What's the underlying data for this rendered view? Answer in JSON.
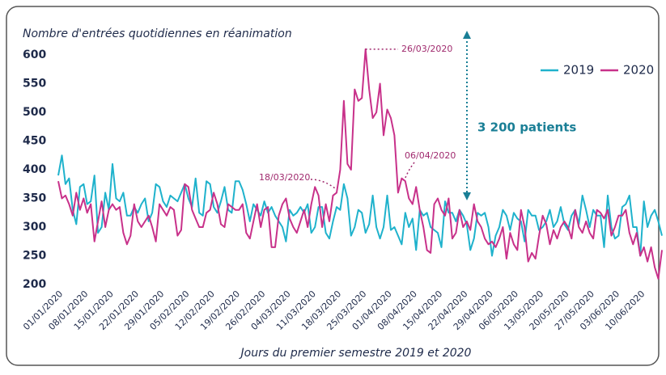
{
  "chart_data": {
    "type": "line",
    "title": "Nombre d'entrées quotidiennes en réanimation",
    "x_label": "Jours du premier semestre 2019 et 2020",
    "categories": [
      "01/01/2020",
      null,
      null,
      null,
      null,
      null,
      null,
      "08/01/2020",
      null,
      null,
      null,
      null,
      null,
      null,
      "15/01/2020",
      null,
      null,
      null,
      null,
      null,
      null,
      "22/01/2020",
      null,
      null,
      null,
      null,
      null,
      null,
      "29/01/2020",
      null,
      null,
      null,
      null,
      null,
      null,
      "05/02/2020",
      null,
      null,
      null,
      null,
      null,
      null,
      "12/02/2020",
      null,
      null,
      null,
      null,
      null,
      null,
      "19/02/2020",
      null,
      null,
      null,
      null,
      null,
      null,
      "26/02/2020",
      null,
      null,
      null,
      null,
      null,
      null,
      "04/03/2020",
      null,
      null,
      null,
      null,
      null,
      null,
      "11/03/2020",
      null,
      null,
      null,
      null,
      null,
      null,
      "18/03/2020",
      null,
      null,
      null,
      null,
      null,
      null,
      "25/03/2020",
      null,
      null,
      null,
      null,
      null,
      null,
      "01/04/2020",
      null,
      null,
      null,
      null,
      null,
      null,
      "08/04/2020",
      null,
      null,
      null,
      null,
      null,
      null,
      "15/04/2020",
      null,
      null,
      null,
      null,
      null,
      null,
      "22/04/2020",
      null,
      null,
      null,
      null,
      null,
      null,
      "29/04/2020",
      null,
      null,
      null,
      null,
      null,
      null,
      "06/05/2020",
      null,
      null,
      null,
      null,
      null,
      null,
      "13/05/2020",
      null,
      null,
      null,
      null,
      null,
      null,
      "20/05/2020",
      null,
      null,
      null,
      null,
      null,
      null,
      "27/05/2020",
      null,
      null,
      null,
      null,
      null,
      null,
      "03/06/2020",
      null,
      null,
      null,
      null,
      null,
      null,
      "10/06/2020",
      null,
      null,
      null,
      null,
      null,
      null
    ],
    "series": [
      {
        "name": "2019",
        "color": "#1fb2cc",
        "values": [
          390,
          425,
          375,
          385,
          330,
          305,
          370,
          375,
          340,
          345,
          390,
          290,
          300,
          360,
          330,
          410,
          350,
          345,
          360,
          320,
          320,
          335,
          325,
          340,
          350,
          310,
          325,
          375,
          370,
          345,
          335,
          355,
          350,
          345,
          360,
          375,
          350,
          335,
          385,
          325,
          320,
          380,
          375,
          335,
          325,
          345,
          370,
          330,
          325,
          380,
          380,
          365,
          340,
          310,
          340,
          330,
          320,
          345,
          325,
          335,
          320,
          310,
          300,
          275,
          330,
          320,
          325,
          335,
          325,
          340,
          290,
          300,
          335,
          335,
          290,
          280,
          310,
          335,
          330,
          375,
          350,
          285,
          300,
          330,
          325,
          290,
          305,
          355,
          300,
          280,
          300,
          355,
          295,
          300,
          285,
          270,
          325,
          300,
          315,
          260,
          330,
          320,
          325,
          300,
          295,
          290,
          265,
          345,
          325,
          325,
          310,
          330,
          320,
          305,
          260,
          280,
          325,
          320,
          325,
          300,
          250,
          285,
          300,
          330,
          320,
          295,
          325,
          315,
          310,
          275,
          330,
          320,
          320,
          295,
          300,
          310,
          330,
          300,
          310,
          335,
          305,
          295,
          320,
          330,
          305,
          355,
          330,
          300,
          330,
          320,
          320,
          265,
          355,
          300,
          280,
          285,
          335,
          340,
          355,
          300,
          300,
          250,
          345,
          300,
          320,
          330,
          310,
          285
        ]
      },
      {
        "name": "2020",
        "color": "#c8318a",
        "values": [
          380,
          350,
          355,
          340,
          320,
          360,
          330,
          350,
          325,
          340,
          275,
          310,
          345,
          300,
          330,
          340,
          330,
          335,
          290,
          270,
          285,
          340,
          310,
          300,
          310,
          320,
          300,
          275,
          340,
          330,
          320,
          335,
          330,
          285,
          295,
          375,
          370,
          330,
          315,
          300,
          300,
          325,
          330,
          360,
          340,
          305,
          300,
          340,
          335,
          330,
          330,
          340,
          290,
          280,
          310,
          340,
          300,
          330,
          335,
          265,
          265,
          320,
          340,
          350,
          315,
          300,
          290,
          310,
          330,
          300,
          340,
          370,
          355,
          300,
          340,
          310,
          355,
          360,
          400,
          520,
          410,
          400,
          540,
          520,
          525,
          610,
          540,
          490,
          500,
          550,
          460,
          505,
          490,
          460,
          360,
          385,
          380,
          350,
          340,
          370,
          330,
          300,
          260,
          255,
          340,
          350,
          330,
          320,
          350,
          280,
          290,
          330,
          300,
          310,
          295,
          340,
          310,
          300,
          280,
          270,
          275,
          265,
          280,
          300,
          245,
          290,
          270,
          260,
          330,
          300,
          240,
          255,
          245,
          285,
          320,
          305,
          270,
          295,
          280,
          300,
          310,
          300,
          280,
          330,
          300,
          290,
          310,
          290,
          280,
          330,
          325,
          315,
          330,
          285,
          300,
          320,
          320,
          330,
          290,
          270,
          290,
          250,
          265,
          240,
          265,
          230,
          210,
          260
        ]
      }
    ],
    "ylim": [
      200,
      600
    ],
    "yticks": [
      200,
      250,
      300,
      350,
      400,
      450,
      500,
      550,
      600
    ],
    "grid": false,
    "legend": "top-right",
    "annotations": [
      "26/03/2020",
      "18/03/2020",
      "06/04/2020",
      "3 200 patients"
    ]
  }
}
